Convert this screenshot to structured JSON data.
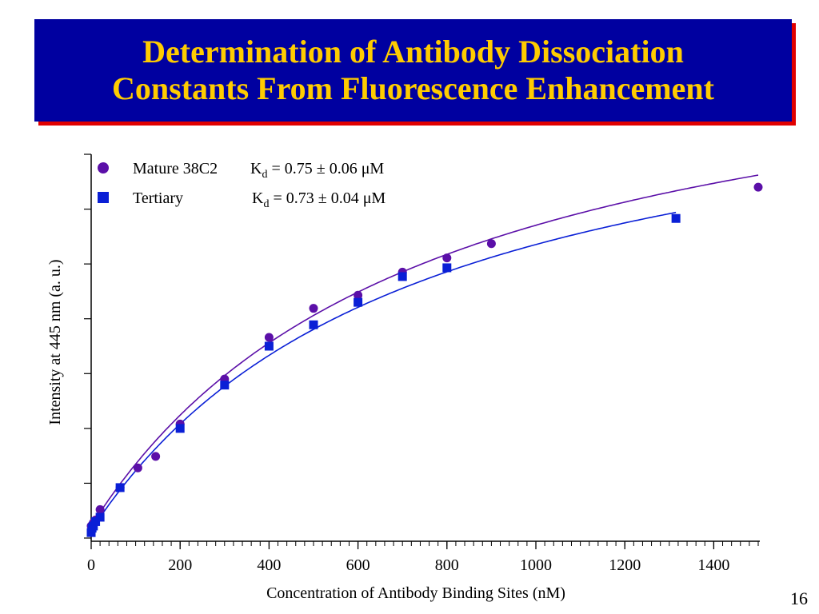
{
  "slide": {
    "title_line1": "Determination of Antibody Dissociation",
    "title_line2": "Constants From Fluorescence Enhancement",
    "page_number": "16"
  },
  "colors": {
    "title_background": "#0000a0",
    "title_text": "#ffcc00",
    "title_shadow": "#e00000",
    "mature": "#5b0fa8",
    "tertiary": "#0a1fd6"
  },
  "chart_data": {
    "type": "scatter",
    "xlabel": "Concentration of Antibody Binding Sites (nM)",
    "ylabel": "Intensity at 445 nm (a. u.)",
    "xlim": [
      0,
      1500
    ],
    "ylim": [
      0,
      7
    ],
    "xticks": [
      0,
      200,
      400,
      600,
      800,
      1000,
      1200,
      1400
    ],
    "xtick_labels": [
      "0",
      "200",
      "400",
      "600",
      "800",
      "1000",
      "1200",
      "1400"
    ],
    "y_tick_count": 8,
    "x_minor_step": 20,
    "grid": false,
    "legend_position": "top-left",
    "series": [
      {
        "name": "Mature 38C2",
        "kd_prefix": "K",
        "kd_sub": "d",
        "kd_value": " = 0.75 ± 0.06 μM",
        "marker": "circle",
        "x": [
          0,
          5,
          10,
          20,
          65,
          105,
          145,
          200,
          300,
          400,
          500,
          600,
          700,
          800,
          900,
          1500
        ],
        "y": [
          0.22,
          0.28,
          0.33,
          0.52,
          0.92,
          1.28,
          1.49,
          2.08,
          2.9,
          3.66,
          4.19,
          4.43,
          4.85,
          5.11,
          5.37,
          6.4
        ]
      },
      {
        "name": "Tertiary",
        "kd_prefix": "K",
        "kd_sub": "d",
        "kd_value": " = 0.73 ± 0.04 μM",
        "marker": "square",
        "x": [
          0,
          2,
          5,
          10,
          20,
          65,
          200,
          300,
          400,
          500,
          600,
          700,
          800,
          1315
        ],
        "y": [
          0.1,
          0.18,
          0.22,
          0.3,
          0.38,
          0.92,
          2.0,
          2.79,
          3.5,
          3.89,
          4.3,
          4.77,
          4.93,
          5.83
        ]
      }
    ],
    "fits": [
      {
        "series": "Mature 38C2",
        "kd_nM": 750,
        "bmax": 9.6,
        "x_end": 1500
      },
      {
        "series": "Tertiary",
        "kd_nM": 730,
        "bmax": 9.02,
        "x_end": 1315
      }
    ]
  }
}
